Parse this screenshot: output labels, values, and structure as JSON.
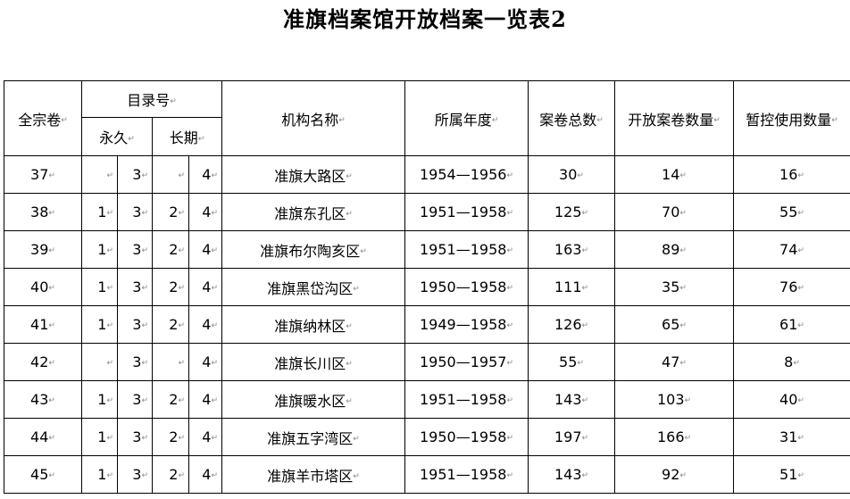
{
  "title": "准旗档案馆开放档案一览表2",
  "headers": {
    "quanzong": "全宗卷",
    "mulu": "目录号",
    "yongjiu": "永久",
    "changqi": "长期",
    "jigou": "机构名称",
    "niandu": "所属年度",
    "zongshu": "案卷总数",
    "kaifang": "开放案卷数量",
    "zankong": "暂控使用数量"
  },
  "rows": [
    {
      "q": "37",
      "y1": "",
      "y2": "3",
      "c1": "",
      "c2": "4",
      "name": "准旗大路区",
      "year": "1954—1956",
      "total": "30",
      "open": "14",
      "hold": "16"
    },
    {
      "q": "38",
      "y1": "1",
      "y2": "3",
      "c1": "2",
      "c2": "4",
      "name": "准旗东孔区",
      "year": "1951—1958",
      "total": "125",
      "open": "70",
      "hold": "55"
    },
    {
      "q": "39",
      "y1": "1",
      "y2": "3",
      "c1": "2",
      "c2": "4",
      "name": "准旗布尔陶亥区",
      "year": "1951—1958",
      "total": "163",
      "open": "89",
      "hold": "74"
    },
    {
      "q": "40",
      "y1": "1",
      "y2": "3",
      "c1": "2",
      "c2": "4",
      "name": "准旗黑岱沟区",
      "year": "1950—1958",
      "total": "111",
      "open": "35",
      "hold": "76"
    },
    {
      "q": "41",
      "y1": "1",
      "y2": "3",
      "c1": "2",
      "c2": "4",
      "name": "准旗纳林区",
      "year": "1949—1958",
      "total": "126",
      "open": "65",
      "hold": "61"
    },
    {
      "q": "42",
      "y1": "",
      "y2": "3",
      "c1": "",
      "c2": "4",
      "name": "准旗长川区",
      "year": "1950—1957",
      "total": "55",
      "open": "47",
      "hold": "8"
    },
    {
      "q": "43",
      "y1": "1",
      "y2": "3",
      "c1": "2",
      "c2": "4",
      "name": "准旗暖水区",
      "year": "1951—1958",
      "total": "143",
      "open": "103",
      "hold": "40"
    },
    {
      "q": "44",
      "y1": "1",
      "y2": "3",
      "c1": "2",
      "c2": "4",
      "name": "准旗五字湾区",
      "year": "1950—1958",
      "total": "197",
      "open": "166",
      "hold": "31"
    },
    {
      "q": "45",
      "y1": "1",
      "y2": "3",
      "c1": "2",
      "c2": "4",
      "name": "准旗羊市塔区",
      "year": "1951—1958",
      "total": "143",
      "open": "92",
      "hold": "51"
    }
  ]
}
